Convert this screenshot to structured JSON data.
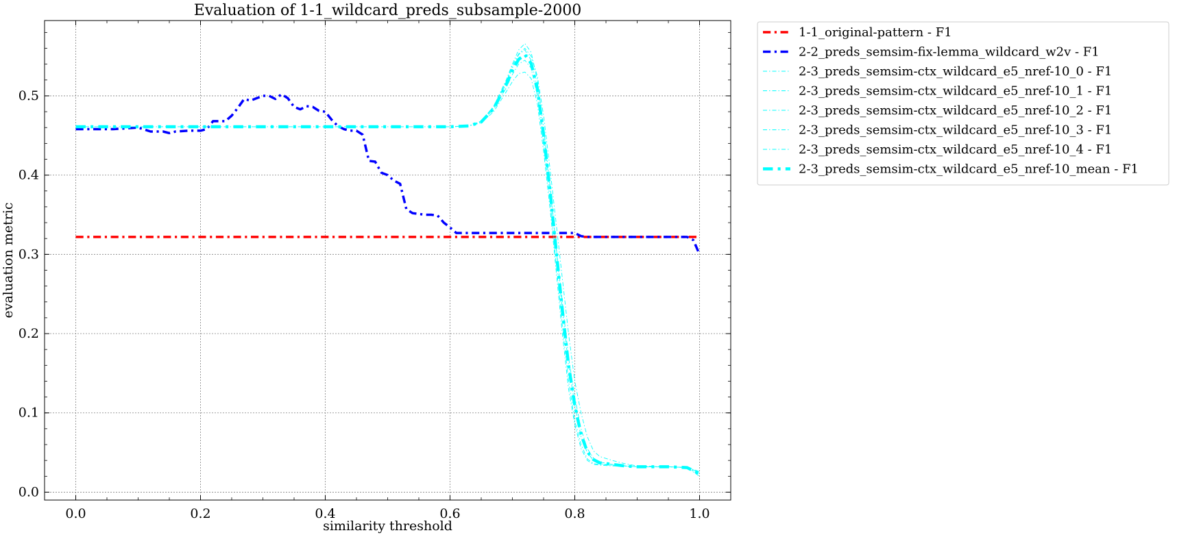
{
  "chart_data": {
    "type": "line",
    "title": "Evaluation of 1-1_wildcard_preds_subsample-2000",
    "xlabel": "similarity threshold",
    "ylabel": "evaluation metric",
    "xlim": [
      -0.05,
      1.05
    ],
    "ylim": [
      -0.01,
      0.595
    ],
    "xticks": [
      0.0,
      0.2,
      0.4,
      0.6,
      0.8,
      1.0
    ],
    "xtick_labels": [
      "0.0",
      "0.2",
      "0.4",
      "0.6",
      "0.8",
      "1.0"
    ],
    "yticks": [
      0.0,
      0.1,
      0.2,
      0.3,
      0.4,
      0.5
    ],
    "ytick_labels": [
      "0.0",
      "0.1",
      "0.2",
      "0.3",
      "0.4",
      "0.5"
    ],
    "grid": true,
    "legend_position": "outside-top-right",
    "series": [
      {
        "name": "1-1_original-pattern - F1",
        "color": "#ff0000",
        "style": "dashdot",
        "width": 3.5,
        "x": [
          0.0,
          1.0
        ],
        "y": [
          0.322,
          0.322
        ]
      },
      {
        "name": "2-2_preds_semsim-fix-lemma_wildcard_w2v - F1",
        "color": "#0000ff",
        "style": "dashdot",
        "width": 3.5,
        "x": [
          0.0,
          0.02,
          0.04,
          0.06,
          0.08,
          0.1,
          0.12,
          0.14,
          0.15,
          0.16,
          0.18,
          0.2,
          0.21,
          0.22,
          0.23,
          0.24,
          0.25,
          0.26,
          0.27,
          0.28,
          0.29,
          0.3,
          0.31,
          0.32,
          0.33,
          0.34,
          0.35,
          0.36,
          0.37,
          0.38,
          0.39,
          0.4,
          0.41,
          0.42,
          0.43,
          0.44,
          0.45,
          0.46,
          0.47,
          0.48,
          0.49,
          0.5,
          0.51,
          0.52,
          0.53,
          0.54,
          0.55,
          0.56,
          0.57,
          0.58,
          0.59,
          0.6,
          0.61,
          0.62,
          0.64,
          0.66,
          0.68,
          0.7,
          0.72,
          0.74,
          0.76,
          0.78,
          0.8,
          0.81,
          0.82,
          0.84,
          0.86,
          0.88,
          0.9,
          0.92,
          0.94,
          0.96,
          0.98,
          0.99,
          1.0
        ],
        "y": [
          0.458,
          0.458,
          0.458,
          0.458,
          0.459,
          0.46,
          0.455,
          0.455,
          0.453,
          0.455,
          0.456,
          0.456,
          0.458,
          0.468,
          0.468,
          0.468,
          0.475,
          0.485,
          0.496,
          0.494,
          0.497,
          0.5,
          0.5,
          0.496,
          0.502,
          0.497,
          0.486,
          0.483,
          0.487,
          0.486,
          0.481,
          0.48,
          0.47,
          0.462,
          0.458,
          0.456,
          0.456,
          0.451,
          0.418,
          0.417,
          0.403,
          0.4,
          0.393,
          0.389,
          0.357,
          0.352,
          0.351,
          0.35,
          0.35,
          0.349,
          0.34,
          0.334,
          0.327,
          0.327,
          0.327,
          0.327,
          0.327,
          0.327,
          0.327,
          0.327,
          0.327,
          0.327,
          0.327,
          0.323,
          0.322,
          0.322,
          0.322,
          0.322,
          0.322,
          0.322,
          0.322,
          0.322,
          0.322,
          0.318,
          0.3
        ]
      },
      {
        "name": "2-3_preds_semsim-ctx_wildcard_e5_nref-10_0 - F1",
        "color": "#00ffff",
        "style": "dashdot",
        "width": 0.9,
        "x": [
          0.0,
          0.1,
          0.2,
          0.3,
          0.4,
          0.5,
          0.6,
          0.63,
          0.65,
          0.67,
          0.69,
          0.7,
          0.71,
          0.72,
          0.73,
          0.74,
          0.75,
          0.76,
          0.77,
          0.78,
          0.79,
          0.8,
          0.81,
          0.82,
          0.83,
          0.84,
          0.86,
          0.88,
          0.9,
          0.95,
          0.98,
          1.0
        ],
        "y": [
          0.461,
          0.461,
          0.461,
          0.461,
          0.461,
          0.461,
          0.461,
          0.462,
          0.468,
          0.485,
          0.515,
          0.535,
          0.552,
          0.558,
          0.545,
          0.51,
          0.45,
          0.385,
          0.31,
          0.24,
          0.17,
          0.12,
          0.08,
          0.055,
          0.043,
          0.038,
          0.035,
          0.033,
          0.032,
          0.032,
          0.031,
          0.025
        ]
      },
      {
        "name": "2-3_preds_semsim-ctx_wildcard_e5_nref-10_1 - F1",
        "color": "#00ffff",
        "style": "dashdot",
        "width": 0.9,
        "x": [
          0.0,
          0.1,
          0.2,
          0.3,
          0.4,
          0.5,
          0.6,
          0.63,
          0.65,
          0.67,
          0.69,
          0.7,
          0.71,
          0.72,
          0.73,
          0.74,
          0.75,
          0.76,
          0.77,
          0.78,
          0.79,
          0.8,
          0.81,
          0.82,
          0.83,
          0.84,
          0.86,
          0.88,
          0.9,
          0.95,
          0.98,
          1.0
        ],
        "y": [
          0.461,
          0.461,
          0.461,
          0.461,
          0.461,
          0.461,
          0.461,
          0.462,
          0.468,
          0.487,
          0.52,
          0.54,
          0.558,
          0.566,
          0.555,
          0.52,
          0.46,
          0.39,
          0.31,
          0.23,
          0.16,
          0.11,
          0.07,
          0.05,
          0.04,
          0.036,
          0.034,
          0.033,
          0.032,
          0.032,
          0.031,
          0.02
        ]
      },
      {
        "name": "2-3_preds_semsim-ctx_wildcard_e5_nref-10_2 - F1",
        "color": "#00ffff",
        "style": "dashdot",
        "width": 0.9,
        "x": [
          0.0,
          0.1,
          0.2,
          0.3,
          0.4,
          0.5,
          0.6,
          0.63,
          0.65,
          0.67,
          0.69,
          0.7,
          0.71,
          0.72,
          0.73,
          0.74,
          0.75,
          0.76,
          0.77,
          0.78,
          0.79,
          0.8,
          0.81,
          0.82,
          0.83,
          0.84,
          0.86,
          0.88,
          0.9,
          0.95,
          0.98,
          1.0
        ],
        "y": [
          0.461,
          0.461,
          0.461,
          0.461,
          0.461,
          0.461,
          0.461,
          0.462,
          0.466,
          0.48,
          0.505,
          0.518,
          0.528,
          0.53,
          0.522,
          0.49,
          0.43,
          0.36,
          0.28,
          0.2,
          0.13,
          0.085,
          0.055,
          0.04,
          0.035,
          0.034,
          0.033,
          0.033,
          0.032,
          0.032,
          0.031,
          0.022
        ]
      },
      {
        "name": "2-3_preds_semsim-ctx_wildcard_e5_nref-10_3 - F1",
        "color": "#00ffff",
        "style": "dashdot",
        "width": 0.9,
        "x": [
          0.0,
          0.1,
          0.2,
          0.3,
          0.4,
          0.5,
          0.6,
          0.63,
          0.65,
          0.67,
          0.69,
          0.7,
          0.71,
          0.72,
          0.73,
          0.74,
          0.75,
          0.76,
          0.77,
          0.78,
          0.79,
          0.8,
          0.81,
          0.82,
          0.83,
          0.84,
          0.86,
          0.88,
          0.9,
          0.95,
          0.98,
          1.0
        ],
        "y": [
          0.461,
          0.461,
          0.461,
          0.461,
          0.461,
          0.461,
          0.461,
          0.462,
          0.467,
          0.483,
          0.51,
          0.527,
          0.54,
          0.545,
          0.535,
          0.5,
          0.44,
          0.37,
          0.29,
          0.21,
          0.14,
          0.09,
          0.06,
          0.042,
          0.036,
          0.035,
          0.034,
          0.033,
          0.032,
          0.032,
          0.031,
          0.023
        ]
      },
      {
        "name": "2-3_preds_semsim-ctx_wildcard_e5_nref-10_4 - F1",
        "color": "#00ffff",
        "style": "dashdot",
        "width": 0.9,
        "x": [
          0.0,
          0.1,
          0.2,
          0.3,
          0.4,
          0.5,
          0.6,
          0.63,
          0.65,
          0.67,
          0.69,
          0.7,
          0.71,
          0.72,
          0.73,
          0.74,
          0.75,
          0.76,
          0.77,
          0.78,
          0.79,
          0.8,
          0.81,
          0.82,
          0.83,
          0.84,
          0.86,
          0.88,
          0.9,
          0.95,
          0.98,
          1.0
        ],
        "y": [
          0.461,
          0.461,
          0.461,
          0.461,
          0.461,
          0.461,
          0.461,
          0.462,
          0.468,
          0.486,
          0.518,
          0.538,
          0.553,
          0.56,
          0.55,
          0.525,
          0.475,
          0.41,
          0.34,
          0.27,
          0.2,
          0.14,
          0.1,
          0.07,
          0.052,
          0.045,
          0.04,
          0.036,
          0.033,
          0.032,
          0.031,
          0.026
        ]
      },
      {
        "name": "2-3_preds_semsim-ctx_wildcard_e5_nref-10_mean - F1",
        "color": "#00ffff",
        "style": "dashdot",
        "width": 4.5,
        "x": [
          0.0,
          0.1,
          0.2,
          0.3,
          0.4,
          0.5,
          0.6,
          0.63,
          0.65,
          0.67,
          0.69,
          0.7,
          0.71,
          0.72,
          0.73,
          0.74,
          0.75,
          0.76,
          0.77,
          0.78,
          0.79,
          0.8,
          0.81,
          0.82,
          0.83,
          0.84,
          0.86,
          0.88,
          0.9,
          0.95,
          0.98,
          1.0
        ],
        "y": [
          0.461,
          0.461,
          0.461,
          0.461,
          0.461,
          0.461,
          0.461,
          0.462,
          0.467,
          0.484,
          0.514,
          0.532,
          0.546,
          0.552,
          0.541,
          0.509,
          0.451,
          0.383,
          0.306,
          0.23,
          0.16,
          0.109,
          0.073,
          0.051,
          0.041,
          0.037,
          0.035,
          0.033,
          0.032,
          0.032,
          0.031,
          0.023
        ]
      }
    ]
  }
}
